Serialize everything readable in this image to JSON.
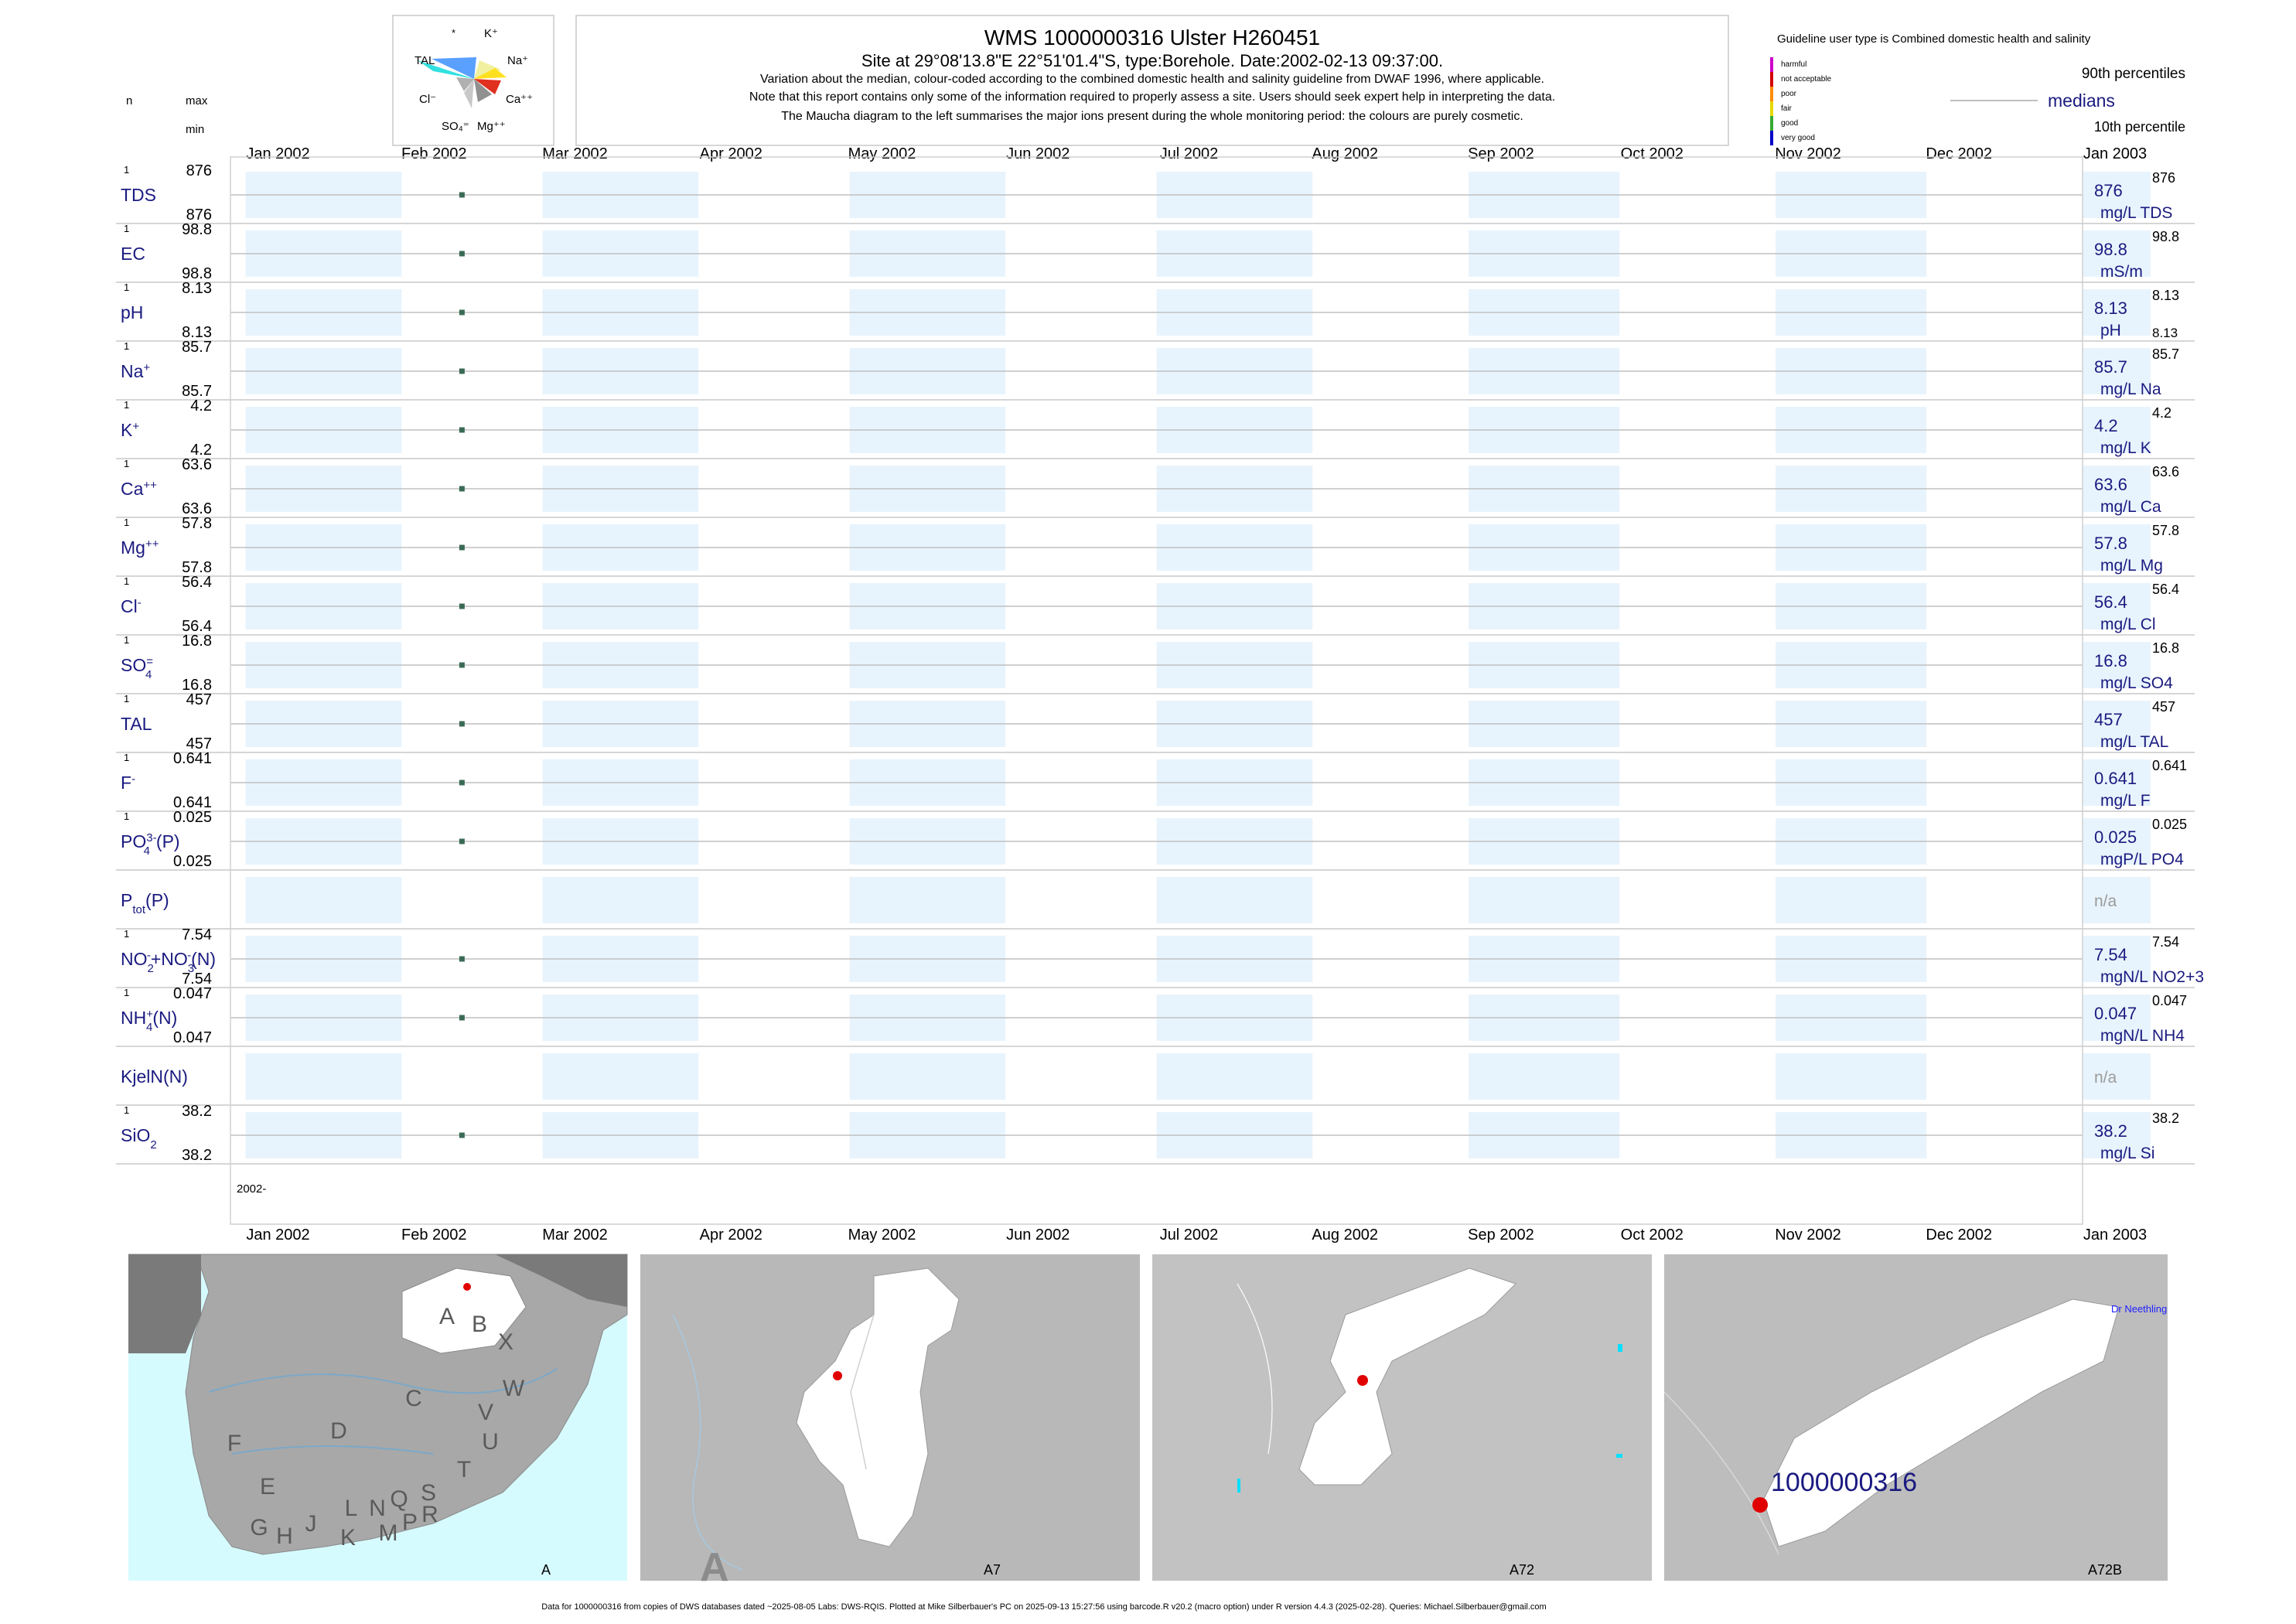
{
  "header": {
    "title": "WMS 1000000316  Ulster H260451",
    "site_line": "Site at 29°08'13.8\"E 22°51'01.4\"S, type:Borehole. Date:2002-02-13 09:37:00.",
    "note1": "Variation about the median,  colour-coded according to the combined domestic health and salinity guideline from DWAF 1996, where applicable.",
    "note2": "Note that this report contains only some of the information required to properly assess a site. Users should seek expert help in interpreting the data.",
    "note3": "The Maucha diagram to the left summarises the major ions present during the whole monitoring period: the colours are purely cosmetic.",
    "col_n": "n",
    "col_max": "max",
    "col_min": "min"
  },
  "maucha": {
    "labels": [
      "*",
      "K⁺",
      "Na⁺",
      "Ca⁺⁺",
      "Mg⁺⁺",
      "SO₄⁼",
      "Cl⁻",
      "TAL"
    ]
  },
  "legend": {
    "guideline": "Guideline user type is Combined domestic health and salinity",
    "classes": [
      "harmful",
      "not acceptable",
      "poor",
      "fair",
      "good",
      "very good"
    ],
    "class_colors": [
      "#cc00cc",
      "#d40000",
      "#ff8c00",
      "#e6d800",
      "#33aa33",
      "#0000c8"
    ],
    "p90": "90th percentiles",
    "medians": "medians",
    "p10": "10th percentile"
  },
  "chart_data": {
    "type": "scatter",
    "x_axis": {
      "tick_labels": [
        "Jan 2002",
        "Feb 2002",
        "Mar 2002",
        "Apr 2002",
        "May 2002",
        "Jun 2002",
        "Jul 2002",
        "Aug 2002",
        "Sep 2002",
        "Oct 2002",
        "Nov 2002",
        "Dec 2002",
        "Jan 2003"
      ],
      "range": [
        "2001-12-29",
        "2003-01-01"
      ],
      "year_label": "2002-"
    },
    "sample_date": "2002-02-13",
    "series": [
      {
        "name": "TDS",
        "html": "TDS",
        "n": "1",
        "max": "876",
        "min": "876",
        "value": 876,
        "median": "876",
        "p90": "876",
        "unit": "mg/L TDS"
      },
      {
        "name": "EC",
        "html": "EC",
        "n": "1",
        "max": "98.8",
        "min": "98.8",
        "value": 98.8,
        "median": "98.8",
        "p90": "98.8",
        "unit": "mS/m"
      },
      {
        "name": "pH",
        "html": "pH",
        "n": "1",
        "max": "8.13",
        "min": "8.13",
        "value": 8.13,
        "median": "8.13",
        "p90": "8.13",
        "p10": "8.13",
        "unit": "pH"
      },
      {
        "name": "Na",
        "html": "Na<tspan baseline-shift='super' font-size='15'>+</tspan>",
        "n": "1",
        "max": "85.7",
        "min": "85.7",
        "value": 85.7,
        "median": "85.7",
        "p90": "85.7",
        "unit": "mg/L Na"
      },
      {
        "name": "K",
        "html": "K<tspan baseline-shift='super' font-size='15'>+</tspan>",
        "n": "1",
        "max": "4.2",
        "min": "4.2",
        "value": 4.2,
        "median": "4.2",
        "p90": "4.2",
        "unit": "mg/L K"
      },
      {
        "name": "Ca",
        "html": "Ca<tspan baseline-shift='super' font-size='15'>++</tspan>",
        "n": "1",
        "max": "63.6",
        "min": "63.6",
        "value": 63.6,
        "median": "63.6",
        "p90": "63.6",
        "unit": "mg/L Ca"
      },
      {
        "name": "Mg",
        "html": "Mg<tspan baseline-shift='super' font-size='15'>++</tspan>",
        "n": "1",
        "max": "57.8",
        "min": "57.8",
        "value": 57.8,
        "median": "57.8",
        "p90": "57.8",
        "unit": "mg/L Mg"
      },
      {
        "name": "Cl",
        "html": "Cl<tspan baseline-shift='super' font-size='15'>-</tspan>",
        "n": "1",
        "max": "56.4",
        "min": "56.4",
        "value": 56.4,
        "median": "56.4",
        "p90": "56.4",
        "unit": "mg/L Cl"
      },
      {
        "name": "SO4",
        "html": "SO<tspan baseline-shift='super' font-size='15'>=</tspan><tspan baseline-shift='sub' font-size='15' dx='-10'>4</tspan>",
        "n": "1",
        "max": "16.8",
        "min": "16.8",
        "value": 16.8,
        "median": "16.8",
        "p90": "16.8",
        "unit": "mg/L SO4"
      },
      {
        "name": "TAL",
        "html": "TAL",
        "n": "1",
        "max": "457",
        "min": "457",
        "value": 457,
        "median": "457",
        "p90": "457",
        "unit": "mg/L TAL"
      },
      {
        "name": "F",
        "html": "F<tspan baseline-shift='super' font-size='15'>-</tspan>",
        "n": "1",
        "max": "0.641",
        "min": "0.641",
        "value": 0.641,
        "median": "0.641",
        "p90": "0.641",
        "unit": "mg/L F"
      },
      {
        "name": "PO4(P)",
        "html": "PO<tspan baseline-shift='super' font-size='15'>3-</tspan><tspan baseline-shift='sub' font-size='15' dx='-17'>4</tspan><tspan dx='8'>(P)</tspan>",
        "n": "1",
        "max": "0.025",
        "min": "0.025",
        "value": 0.025,
        "median": "0.025",
        "p90": "0.025",
        "unit": "mgP/L PO4"
      },
      {
        "name": "Ptot(P)",
        "html": "P<tspan baseline-shift='sub' font-size='15'>tot</tspan><tspan>(P)</tspan>",
        "n": "",
        "max": "",
        "min": "",
        "value": null,
        "median": "n/a",
        "p90": "",
        "unit": ""
      },
      {
        "name": "NO2+NO3(N)",
        "html": "NO<tspan baseline-shift='sub' font-size='15'>2</tspan><tspan baseline-shift='super' font-size='15' dx='-9'>-</tspan><tspan>+NO</tspan><tspan baseline-shift='sub' font-size='15'>3</tspan><tspan baseline-shift='super' font-size='15' dx='-9'>-</tspan><tspan>(N)</tspan>",
        "n": "1",
        "max": "7.54",
        "min": "7.54",
        "value": 7.54,
        "median": "7.54",
        "p90": "7.54",
        "unit": "mgN/L NO2+3"
      },
      {
        "name": "NH4(N)",
        "html": "NH<tspan baseline-shift='super' font-size='15'>+</tspan><tspan baseline-shift='sub' font-size='15' dx='-9'>4</tspan><tspan>(N)</tspan>",
        "n": "1",
        "max": "0.047",
        "min": "0.047",
        "value": 0.047,
        "median": "0.047",
        "p90": "0.047",
        "unit": "mgN/L NH4"
      },
      {
        "name": "KjelN(N)",
        "html": "KjelN(N)",
        "n": "",
        "max": "",
        "min": "",
        "value": null,
        "median": "n/a",
        "p90": "",
        "unit": ""
      },
      {
        "name": "SiO2",
        "html": "SiO<tspan baseline-shift='sub' font-size='15'>2</tspan>",
        "n": "1",
        "max": "38.2",
        "min": "38.2",
        "value": 38.2,
        "median": "38.2",
        "p90": "38.2",
        "unit": "mg/L Si"
      }
    ]
  },
  "maps": {
    "panel1_label": "A",
    "panel1_regions": [
      "A",
      "B",
      "X",
      "C",
      "W",
      "D",
      "V",
      "U",
      "T",
      "F",
      "E",
      "G",
      "H",
      "J",
      "K",
      "L",
      "N",
      "M",
      "Q",
      "P",
      "S",
      "R"
    ],
    "panel2_label": "A7",
    "panel2_big_letter": "A",
    "panel3_label": "A72",
    "panel4_label": "A72B",
    "panel4_site": "1000000316",
    "panel4_place": "Dr Neethling"
  },
  "footer": "Data for 1000000316 from copies of DWS databases dated ~2025-08-05 Labs: DWS-RQIS. Plotted at Mike Silberbauer's PC on 2025-09-13 15:27:56 using barcode.R v20.2 (macro option) under R version 4.4.3 (2025-02-28). Queries: Michael.Silberbauer@gmail.com"
}
